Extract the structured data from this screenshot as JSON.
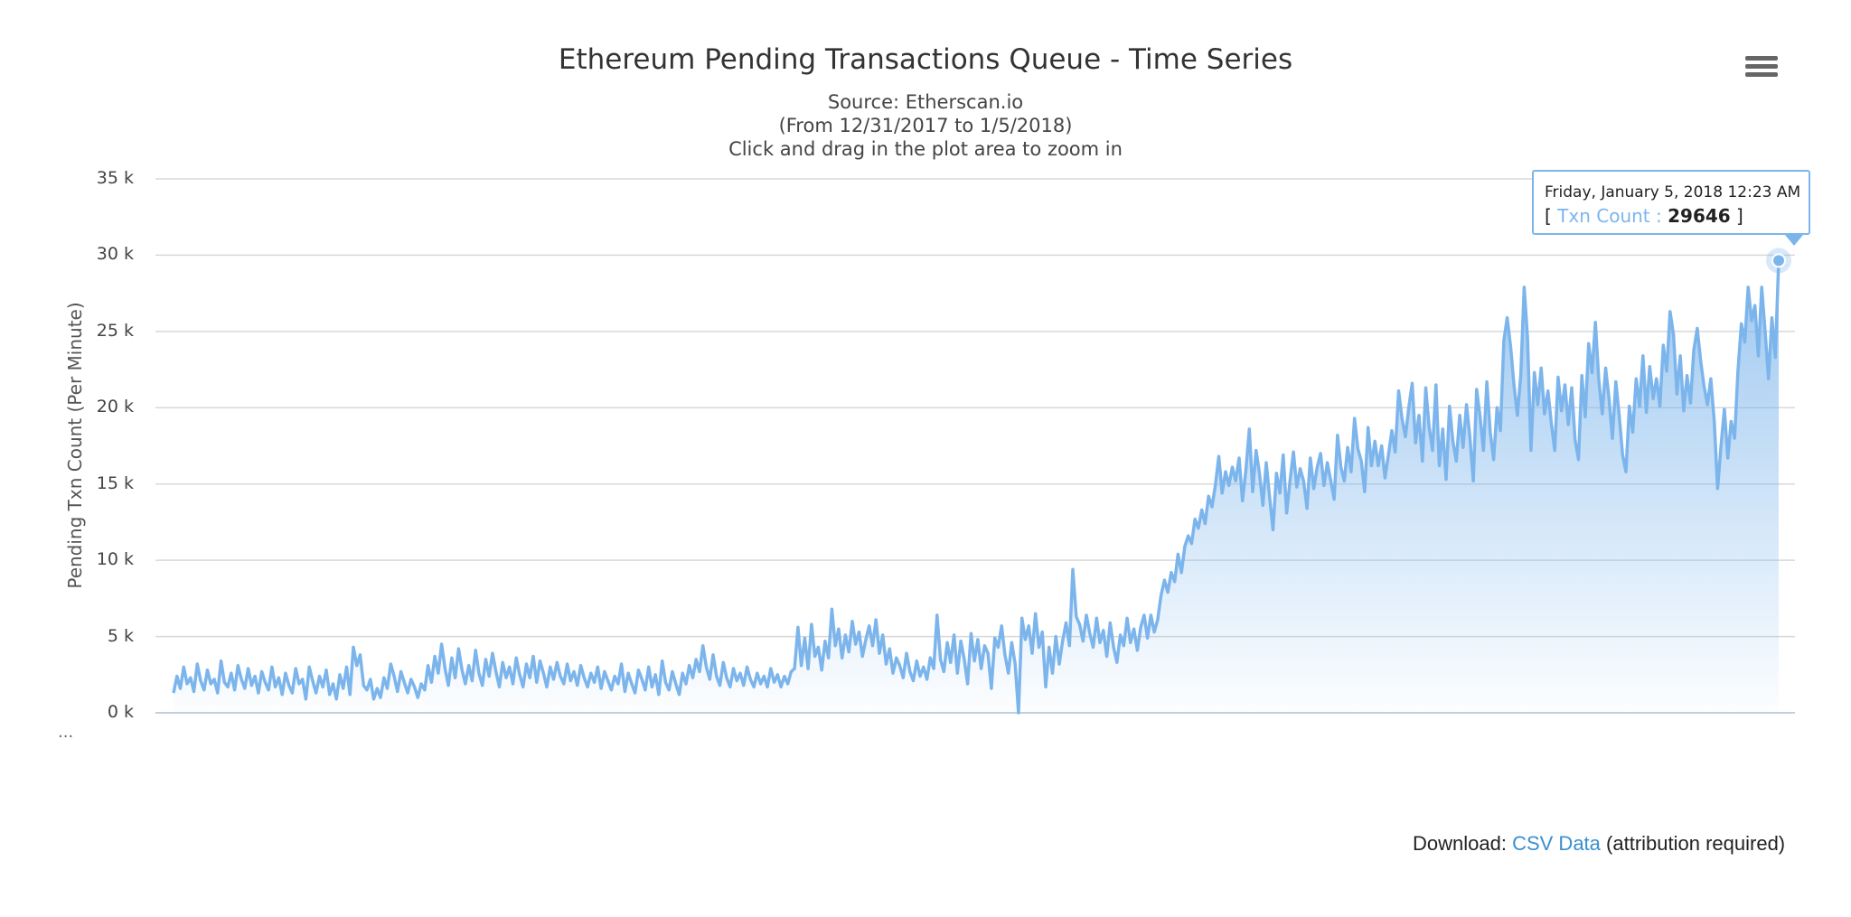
{
  "chart_data": {
    "type": "area",
    "title": "Ethereum Pending Transactions Queue - Time Series",
    "subtitles": [
      "Source: Etherscan.io",
      "(From 12/31/2017 to 1/5/2018)",
      "Click and drag in the plot area to zoom in"
    ],
    "ylabel": "Pending Txn Count (Per Minute)",
    "ylim": [
      0,
      35000
    ],
    "y_ticks": [
      0,
      5000,
      10000,
      15000,
      20000,
      25000,
      30000,
      35000
    ],
    "y_tick_labels": [
      "0 k",
      "5 k",
      "10 k",
      "15 k",
      "20 k",
      "25 k",
      "30 k",
      "35 k"
    ],
    "x_range": [
      "12/31/2017",
      "1/5/2018"
    ],
    "grid": true,
    "series": [
      {
        "name": "Txn Count",
        "color": "#7cb5ec",
        "values": [
          1300,
          2400,
          1600,
          3000,
          1900,
          2300,
          1400,
          3200,
          2100,
          1500,
          2800,
          1900,
          2200,
          1300,
          3400,
          2000,
          1700,
          2600,
          1500,
          3100,
          2200,
          1600,
          2900,
          1800,
          2400,
          1300,
          2700,
          2000,
          1500,
          3000,
          1700,
          2300,
          1200,
          2600,
          1800,
          1300,
          2900,
          1900,
          2200,
          900,
          3000,
          2100,
          1300,
          2400,
          1700,
          2800,
          1200,
          1900,
          900,
          2500,
          1600,
          3000,
          1200,
          4300,
          3100,
          3800,
          1800,
          1500,
          2200,
          900,
          1600,
          1000,
          2300,
          1600,
          3200,
          2400,
          1400,
          2700,
          2000,
          1300,
          2200,
          1700,
          1000,
          1900,
          1500,
          3100,
          2000,
          3700,
          2600,
          4500,
          2900,
          1800,
          3600,
          2300,
          4200,
          2800,
          1900,
          3100,
          2100,
          4100,
          2600,
          1800,
          3500,
          2400,
          3900,
          2700,
          1700,
          3300,
          2300,
          3000,
          1900,
          3600,
          2500,
          1700,
          3200,
          2300,
          3700,
          2000,
          3400,
          2600,
          1700,
          3000,
          2200,
          3300,
          2400,
          1900,
          3200,
          2100,
          2700,
          1800,
          3100,
          2300,
          1700,
          2600,
          2000,
          3000,
          1600,
          2700,
          2100,
          1500,
          2400,
          1900,
          3200,
          1400,
          2600,
          1900,
          1300,
          2800,
          2200,
          1500,
          3000,
          1700,
          2500,
          1200,
          3400,
          2000,
          1500,
          2700,
          1900,
          1200,
          2600,
          1900,
          3100,
          2300,
          3500,
          2700,
          4400,
          3000,
          2200,
          3800,
          2400,
          1800,
          3300,
          2300,
          1700,
          2900,
          2100,
          2600,
          1800,
          3000,
          2200,
          1700,
          2600,
          1900,
          2400,
          1700,
          2900,
          2000,
          2500,
          1700,
          2400,
          1900,
          2700,
          2900,
          5600,
          3100,
          4900,
          2900,
          5800,
          3700,
          4300,
          2800,
          4700,
          3600,
          6800,
          4400,
          5500,
          3600,
          5100,
          4000,
          6000,
          4500,
          5300,
          3700,
          4800,
          5700,
          4400,
          6100,
          3900,
          5100,
          3200,
          4200,
          2600,
          3600,
          3100,
          2300,
          3900,
          2700,
          2100,
          3400,
          2400,
          3000,
          2200,
          3600,
          2900,
          6400,
          3500,
          2700,
          4600,
          3300,
          5100,
          2600,
          4700,
          3500,
          1900,
          5200,
          3400,
          4800,
          2900,
          4400,
          3900,
          1600,
          4900,
          4300,
          5700,
          3800,
          2600,
          4600,
          3200,
          0,
          6200,
          4800,
          5700,
          3900,
          6500,
          4300,
          5300,
          1700,
          4300,
          2600,
          5000,
          3200,
          4700,
          5900,
          4400,
          9400,
          6300,
          5800,
          4700,
          6400,
          5200,
          4300,
          6200,
          4600,
          5400,
          3700,
          5900,
          4300,
          3300,
          5100,
          4400,
          6200,
          4600,
          5500,
          4100,
          5600,
          6400,
          4900,
          6400,
          5300,
          6100,
          7700,
          8700,
          7900,
          9200,
          8600,
          10400,
          9200,
          10900,
          11600,
          11100,
          12700,
          12100,
          13300,
          12400,
          14200,
          13500,
          14900,
          16800,
          14400,
          15800,
          14900,
          16100,
          15200,
          16700,
          13900,
          15900,
          18600,
          14500,
          17200,
          15700,
          13600,
          16400,
          14100,
          12000,
          15700,
          14400,
          16900,
          13100,
          15200,
          17100,
          14800,
          16000,
          15200,
          13400,
          16700,
          14700,
          16100,
          17000,
          14900,
          16400,
          15200,
          14000,
          18200,
          16100,
          15200,
          17400,
          15800,
          19300,
          17300,
          16500,
          14500,
          18700,
          16200,
          17800,
          16200,
          17500,
          15400,
          16900,
          18500,
          17100,
          21100,
          19300,
          18100,
          20000,
          21600,
          17700,
          19500,
          16500,
          21300,
          18700,
          17200,
          21500,
          16200,
          18600,
          15300,
          20100,
          17800,
          16500,
          19500,
          17400,
          20200,
          18100,
          15200,
          21200,
          19400,
          17200,
          21700,
          18400,
          16600,
          20000,
          18500,
          24400,
          25900,
          24000,
          21500,
          19500,
          22100,
          27900,
          24600,
          17200,
          22300,
          20200,
          22600,
          19600,
          21100,
          19000,
          17200,
          22000,
          19800,
          21500,
          18900,
          21300,
          17900,
          16600,
          22100,
          19400,
          24200,
          22300,
          25600,
          21800,
          19600,
          22600,
          20600,
          18000,
          21700,
          19500,
          16900,
          15800,
          20100,
          18400,
          21900,
          20100,
          23400,
          19700,
          22700,
          20600,
          21900,
          20100,
          24100,
          22400,
          26300,
          24800,
          20900,
          23400,
          19800,
          22100,
          20300,
          23800,
          25200,
          23100,
          21400,
          20200,
          21900,
          19100,
          14700,
          17500,
          19900,
          16700,
          19100,
          18000,
          22400,
          25500,
          24300,
          27900,
          25700,
          26700,
          23400,
          27900,
          25000,
          21900,
          25900,
          23300,
          29646
        ]
      }
    ],
    "tooltip": {
      "date": "Friday, January 5, 2018 12:23 AM",
      "series_label": "Txn Count",
      "value": "29646"
    }
  },
  "ui": {
    "menu_icon": "hamburger-menu-icon",
    "ellipsis": "...",
    "download": {
      "prefix": "Download:",
      "link": "CSV Data",
      "suffix": "(attribution required)"
    }
  }
}
